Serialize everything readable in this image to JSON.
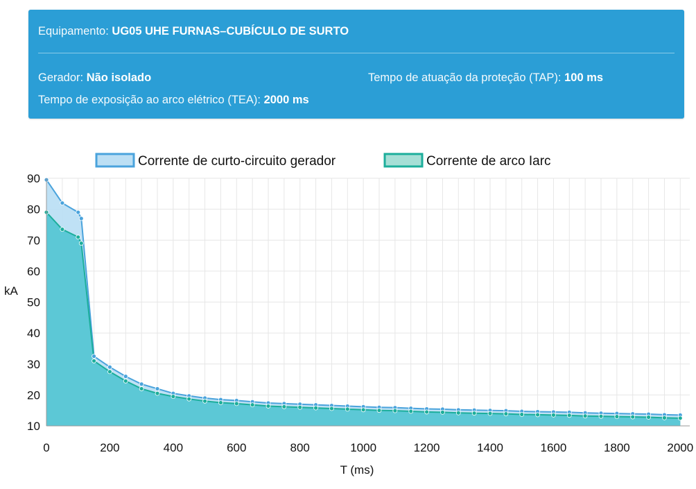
{
  "panel": {
    "equip_label": "Equipamento: ",
    "equip_value": "UG05 UHE FURNAS–CUBÍCULO DE SURTO",
    "gerador_label": "Gerador: ",
    "gerador_value": "Não isolado",
    "tea_label": "Tempo de exposição ao arco elétrico (TEA): ",
    "tea_value": "2000 ms",
    "tap_label": "Tempo de atuação da proteção (TAP): ",
    "tap_value": "100 ms"
  },
  "colors": {
    "panel_bg": "#2b9ed6",
    "series1_line": "#4aa3dc",
    "series1_fill": "#bcdff4",
    "series2_line": "#1cae9b",
    "series2_fill": "#5cc8d6"
  },
  "chart_data": {
    "type": "area",
    "xlabel": "T (ms)",
    "ylabel": "kA",
    "xlim": [
      0,
      2030
    ],
    "ylim": [
      10,
      90
    ],
    "xticks": [
      0,
      200,
      400,
      600,
      800,
      1000,
      1200,
      1400,
      1600,
      1800,
      2000
    ],
    "yticks": [
      10,
      20,
      30,
      40,
      50,
      60,
      70,
      80,
      90
    ],
    "grid": true,
    "legend_position": "top",
    "series": [
      {
        "name": "Corrente de curto-circuito gerador",
        "x": [
          0,
          50,
          100,
          110,
          150,
          200,
          250,
          300,
          350,
          400,
          450,
          500,
          550,
          600,
          650,
          700,
          750,
          800,
          850,
          900,
          950,
          1000,
          1050,
          1100,
          1150,
          1200,
          1250,
          1300,
          1350,
          1400,
          1450,
          1500,
          1550,
          1600,
          1650,
          1700,
          1750,
          1800,
          1850,
          1900,
          1950,
          2000
        ],
        "y": [
          89.5,
          82,
          79,
          77,
          32.5,
          29,
          26,
          23.5,
          22,
          20.5,
          19.7,
          19,
          18.5,
          18.2,
          17.8,
          17.4,
          17.2,
          17,
          16.8,
          16.6,
          16.4,
          16.2,
          16,
          15.9,
          15.7,
          15.5,
          15.4,
          15.2,
          15.1,
          15,
          14.9,
          14.7,
          14.6,
          14.5,
          14.4,
          14.2,
          14.1,
          14,
          13.9,
          13.8,
          13.6,
          13.5
        ]
      },
      {
        "name": "Corrente de arco Iarc",
        "x": [
          0,
          50,
          100,
          110,
          150,
          200,
          250,
          300,
          350,
          400,
          450,
          500,
          550,
          600,
          650,
          700,
          750,
          800,
          850,
          900,
          950,
          1000,
          1050,
          1100,
          1150,
          1200,
          1250,
          1300,
          1350,
          1400,
          1450,
          1500,
          1550,
          1600,
          1650,
          1700,
          1750,
          1800,
          1850,
          1900,
          1950,
          2000
        ],
        "y": [
          79,
          73.5,
          71,
          69,
          31,
          27.5,
          24.5,
          22,
          20.5,
          19.5,
          18.7,
          18,
          17.5,
          17.2,
          16.8,
          16.4,
          16.2,
          16,
          15.8,
          15.6,
          15.4,
          15.2,
          15,
          14.9,
          14.7,
          14.5,
          14.4,
          14.2,
          14.1,
          14,
          13.9,
          13.7,
          13.6,
          13.5,
          13.4,
          13.2,
          13.1,
          13,
          12.9,
          12.8,
          12.6,
          12.5
        ]
      }
    ]
  }
}
